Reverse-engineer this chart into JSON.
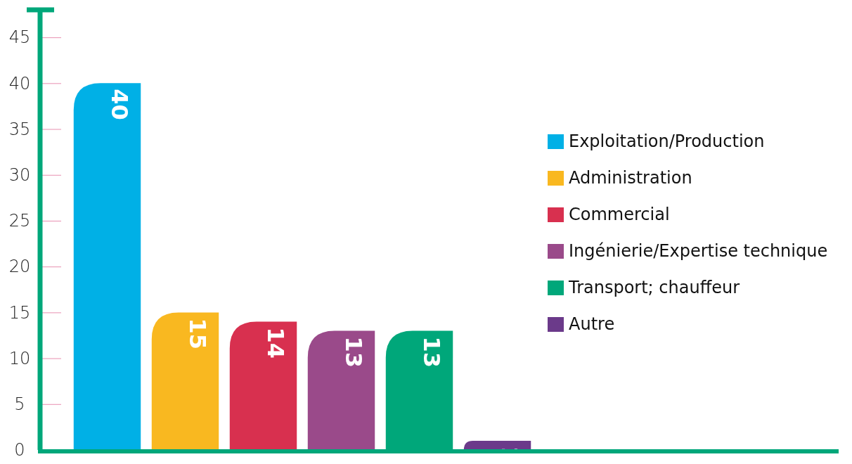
{
  "chart_data": {
    "type": "bar",
    "stacked": true,
    "categories": [
      null,
      null,
      null,
      null,
      null,
      null
    ],
    "series": [
      {
        "name": "Exploitation/Production",
        "color": "#00b0e6",
        "values": [
          40,
          null,
          null,
          null,
          null,
          null
        ]
      },
      {
        "name": "Administration",
        "color": "#f9b820",
        "values": [
          null,
          15,
          null,
          null,
          null,
          null
        ]
      },
      {
        "name": "Commercial",
        "color": "#d8304f",
        "values": [
          null,
          null,
          14,
          null,
          null,
          null
        ]
      },
      {
        "name": "Ingénierie/Expertise technique",
        "color": "#9a4a8a",
        "values": [
          null,
          null,
          null,
          13,
          null,
          null
        ]
      },
      {
        "name": "Transport; chauffeur",
        "color": "#00a77a",
        "values": [
          null,
          null,
          null,
          null,
          13,
          null
        ]
      },
      {
        "name": "Autre",
        "color": "#6b3a8a",
        "values": [
          null,
          null,
          null,
          null,
          null,
          1
        ]
      }
    ],
    "ylim": [
      0,
      48
    ],
    "yticks": [
      0,
      5,
      10,
      15,
      20,
      25,
      30,
      35,
      40,
      45
    ],
    "grid": false,
    "legend": "right",
    "data_labels": true,
    "tick_labels": "y"
  }
}
